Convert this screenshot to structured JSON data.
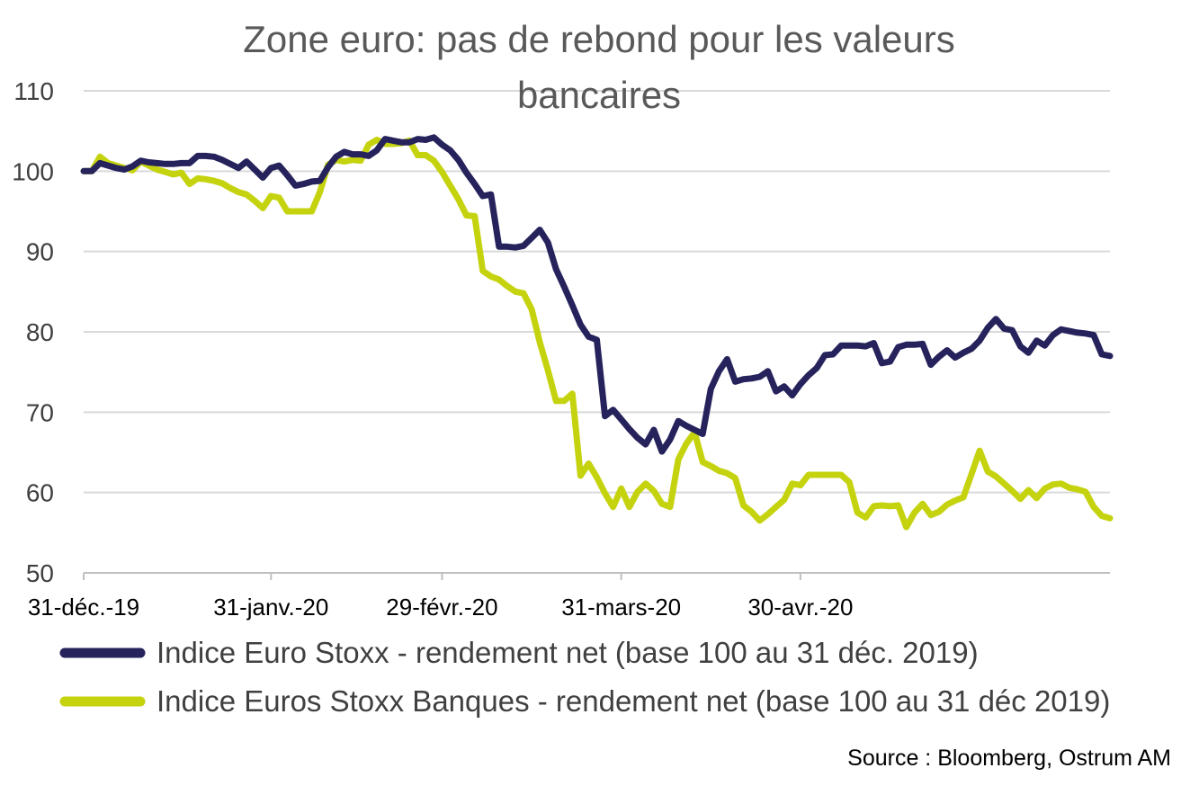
{
  "chart_data": {
    "type": "line",
    "title_lines": [
      "Zone euro: pas de rebond pour les valeurs",
      "bancaires"
    ],
    "xlabel": "",
    "ylabel": "",
    "ylim": [
      50,
      110
    ],
    "y_ticks": [
      50,
      60,
      70,
      80,
      90,
      100,
      110
    ],
    "grid": "horizontal",
    "legend_position": "bottom",
    "x_tick_labels": [
      {
        "label": "31-déc.-19",
        "index": 0
      },
      {
        "label": "31-janv.-20",
        "index": 23
      },
      {
        "label": "29-févr.-20",
        "index": 44
      },
      {
        "label": "31-mars-20",
        "index": 66
      },
      {
        "label": "30-avr.-20",
        "index": 88
      }
    ],
    "series": [
      {
        "name": "Indice Euro Stoxx - rendement net (base 100 au 31 déc. 2019)",
        "color": "#26235c",
        "values": [
          100,
          100,
          101,
          100.7,
          100.4,
          100.2,
          100.6,
          101.3,
          101.1,
          101,
          100.9,
          100.9,
          101,
          101,
          101.9,
          101.9,
          101.8,
          101.4,
          100.9,
          100.4,
          101.2,
          100.2,
          99.2,
          100.4,
          100.7,
          99.5,
          98.2,
          98.4,
          98.7,
          98.8,
          100.5,
          101.8,
          102.4,
          102.1,
          102.1,
          101.9,
          102.6,
          104,
          103.8,
          103.6,
          103.6,
          104,
          103.9,
          104.2,
          103.3,
          102.6,
          101.4,
          99.8,
          98.4,
          96.9,
          97.1,
          90.6,
          90.6,
          90.5,
          90.7,
          91.7,
          92.7,
          91.1,
          87.8,
          85.6,
          83.3,
          80.9,
          79.4,
          79,
          69.5,
          70.3,
          69.1,
          67.9,
          66.8,
          66,
          67.8,
          65.1,
          66.6,
          68.9,
          68.3,
          67.8,
          67.3,
          72.9,
          75.1,
          76.6,
          73.8,
          74.1,
          74.2,
          74.4,
          75.1,
          72.6,
          73.2,
          72.1,
          73.5,
          74.6,
          75.5,
          77.1,
          77.2,
          78.3,
          78.3,
          78.3,
          78.2,
          78.6,
          76.1,
          76.3,
          78.1,
          78.4,
          78.4,
          78.5,
          75.9,
          76.9,
          77.7,
          76.8,
          77.4,
          77.9,
          78.9,
          80.5,
          81.6,
          80.4,
          80.2,
          78.2,
          77.4,
          78.9,
          78.3,
          79.6,
          80.3,
          80.1,
          79.9,
          79.8,
          79.6,
          77.2,
          77
        ]
      },
      {
        "name": "Indice Euros Stoxx Banques - rendement net (base 100 au 31 déc 2019)",
        "color": "#c5d30f",
        "values": [
          100,
          100,
          101.8,
          101,
          100.7,
          100.4,
          100.1,
          101.2,
          100.7,
          100.2,
          99.9,
          99.6,
          99.8,
          98.4,
          99.1,
          99,
          98.8,
          98.5,
          97.9,
          97.4,
          97.1,
          96.3,
          95.4,
          96.9,
          96.7,
          95,
          95,
          95,
          95,
          97.4,
          100.8,
          101.4,
          101.2,
          101.4,
          101.3,
          103.3,
          103.9,
          103.4,
          103.4,
          103.5,
          103.8,
          102,
          102,
          101.3,
          99.9,
          98.2,
          96.5,
          94.5,
          94.4,
          87.6,
          86.9,
          86.5,
          85.7,
          85,
          84.8,
          82.8,
          78.7,
          75.2,
          71.4,
          71.4,
          72.3,
          62.1,
          63.6,
          61.9,
          59.9,
          58.2,
          60.5,
          58.2,
          60.1,
          61.1,
          60.2,
          58.6,
          58.2,
          64.1,
          66.1,
          67.5,
          63.8,
          63.3,
          62.7,
          62.4,
          61.8,
          58.4,
          57.6,
          56.5,
          57.3,
          58.2,
          59.1,
          61.1,
          60.9,
          62.2,
          62.2,
          62.2,
          62.2,
          62.2,
          61.3,
          57.5,
          56.9,
          58.3,
          58.4,
          58.3,
          58.4,
          55.7,
          57.5,
          58.6,
          57.2,
          57.6,
          58.5,
          59,
          59.4,
          62.3,
          65.2,
          62.6,
          62,
          61.1,
          60.2,
          59.2,
          60.3,
          59.3,
          60.5,
          61,
          61.1,
          60.6,
          60.4,
          60.1,
          58.2,
          57.1,
          56.8
        ]
      }
    ]
  },
  "legend": {
    "items": [
      {
        "label": "Indice Euro Stoxx - rendement net (base 100 au 31 déc. 2019)",
        "color": "#26235c"
      },
      {
        "label": "Indice Euros Stoxx Banques - rendement net (base 100 au 31 déc 2019)",
        "color": "#c5d30f"
      }
    ]
  },
  "source": "Source : Bloomberg, Ostrum AM",
  "colors": {
    "grid": "#d9d9d9",
    "axis": "#bfbfbf"
  }
}
